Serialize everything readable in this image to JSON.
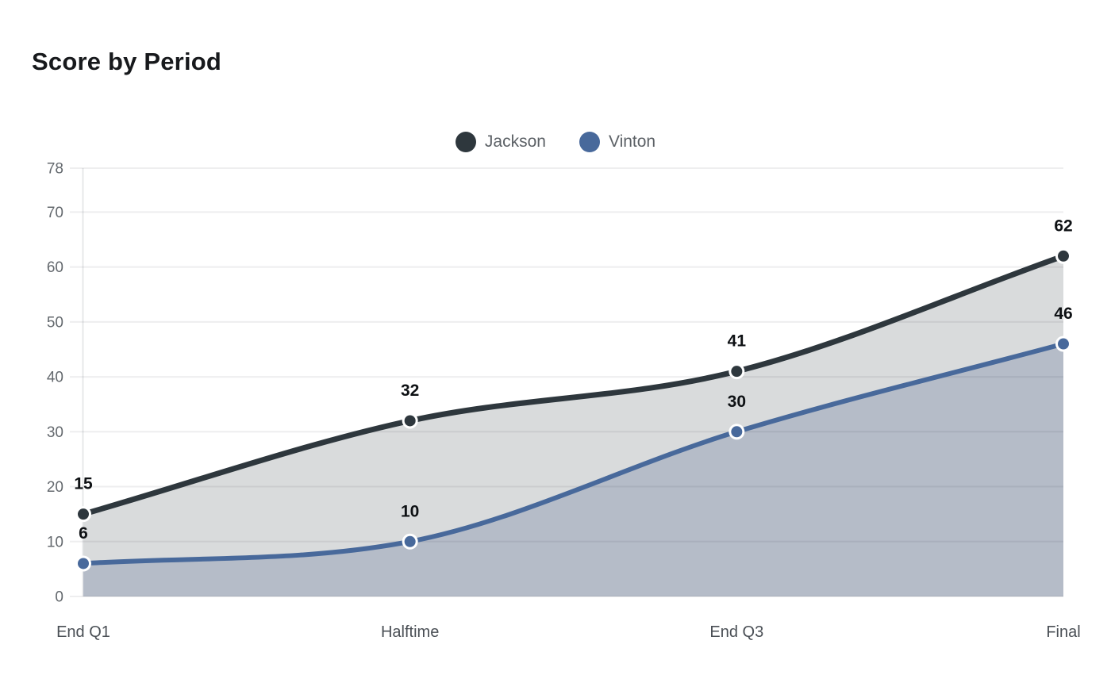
{
  "header": {
    "title": "Score by Period"
  },
  "chart_data": {
    "type": "line",
    "subtype": "smooth-area-line-with-markers",
    "title": "Score by Period",
    "categories": [
      "End Q1",
      "Halftime",
      "End Q3",
      "Final"
    ],
    "series": [
      {
        "name": "Jackson",
        "values": [
          15,
          32,
          41,
          62
        ],
        "line_color": "#2e373d",
        "marker_color": "#2e373d",
        "marker_border_color": "#ffffff",
        "fill_color": "#d9dbdc"
      },
      {
        "name": "Vinton",
        "values": [
          6,
          10,
          30,
          46
        ],
        "line_color": "#48699b",
        "marker_color": "#48699b",
        "marker_border_color": "#ffffff",
        "fill_color": "#b5bcc8"
      }
    ],
    "xlabel": "",
    "ylabel": "",
    "ylim": [
      0,
      78
    ],
    "y_ticks": [
      0,
      10,
      20,
      30,
      40,
      50,
      60,
      70,
      78
    ],
    "grid": true,
    "legend_position": "top-center",
    "data_labels_shown": true
  },
  "style": {
    "title_color": "#17191c",
    "data_label_color": "#0e1114",
    "y_tick_color": "#64696e",
    "x_tick_color": "#4a4f55",
    "legend_text_color": "#5c6166",
    "gridline_color": "rgba(33,40,48,0.08)",
    "axis_line_color": "#e7e8ea",
    "background": "#ffffff"
  }
}
